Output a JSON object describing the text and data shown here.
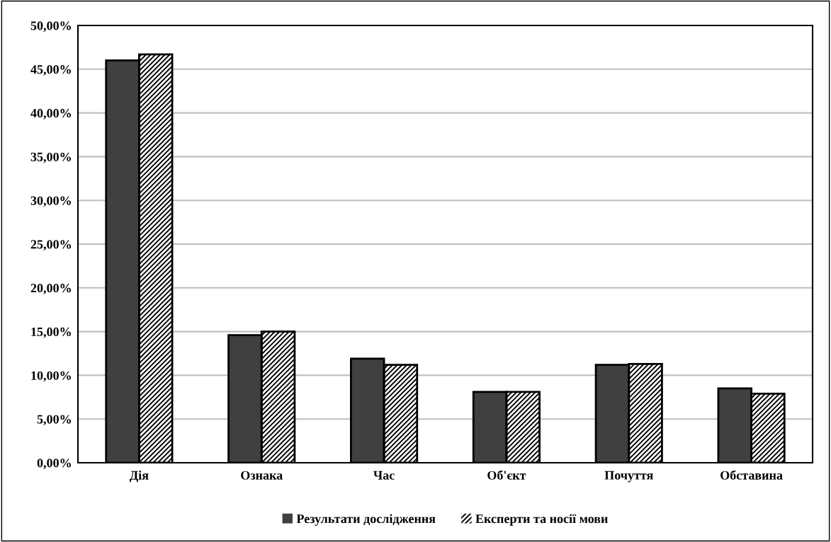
{
  "chart_data": {
    "type": "bar",
    "categories": [
      "Дія",
      "Ознака",
      "Час",
      "Об'єкт",
      "Почуття",
      "Обставина"
    ],
    "series": [
      {
        "name": "Результати дослідження",
        "color": "#404040",
        "values": [
          46.0,
          14.6,
          11.9,
          8.1,
          11.2,
          8.5
        ]
      },
      {
        "name": "Експерти та носії мови",
        "color": "#000000",
        "values": [
          46.7,
          15.0,
          11.2,
          8.1,
          11.3,
          7.9
        ]
      }
    ],
    "ylim": [
      0,
      50
    ],
    "yticks": [
      {
        "value": 0,
        "label": "0,00%"
      },
      {
        "value": 5,
        "label": "5,00%"
      },
      {
        "value": 10,
        "label": "10,00%"
      },
      {
        "value": 15,
        "label": "15,00%"
      },
      {
        "value": 20,
        "label": "20,00%"
      },
      {
        "value": 25,
        "label": "25,00%"
      },
      {
        "value": 30,
        "label": "30,00%"
      },
      {
        "value": 35,
        "label": "35,00%"
      },
      {
        "value": 40,
        "label": "40,00%"
      },
      {
        "value": 45,
        "label": "45,00%"
      },
      {
        "value": 50,
        "label": "50,00%"
      }
    ],
    "grid": "y",
    "legend": "bottom"
  }
}
